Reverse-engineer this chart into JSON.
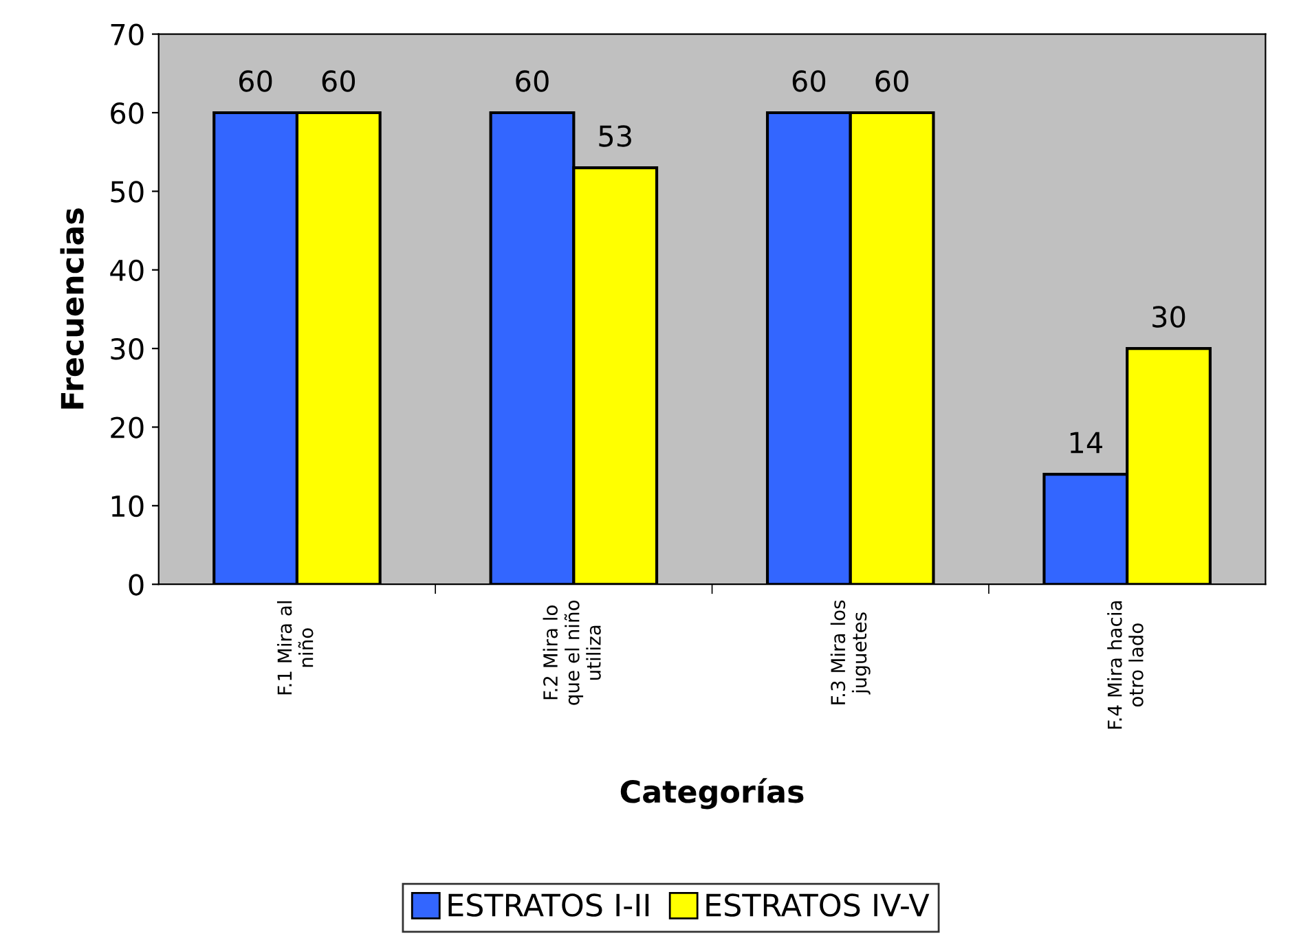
{
  "chart_data": {
    "type": "bar",
    "xlabel": "Categorías",
    "ylabel": "Frecuencias",
    "categories": [
      "F.1 Mira al\nniño",
      "F.2 Mira lo\nque el niño\nutiliza",
      "F.3 Mira los\njuguetes",
      "F.4 Mira hacia\notro lado"
    ],
    "series": [
      {
        "name": "ESTRATOS I-II",
        "color": "#3366ff",
        "values": [
          60,
          60,
          60,
          14
        ]
      },
      {
        "name": "ESTRATOS IV-V",
        "color": "#ffff00",
        "values": [
          60,
          53,
          60,
          30
        ]
      }
    ],
    "ylim": [
      0,
      70
    ],
    "yticks": [
      0,
      10,
      20,
      30,
      40,
      50,
      60,
      70
    ],
    "grid": false,
    "legend": "bottom",
    "data_labels": true
  }
}
